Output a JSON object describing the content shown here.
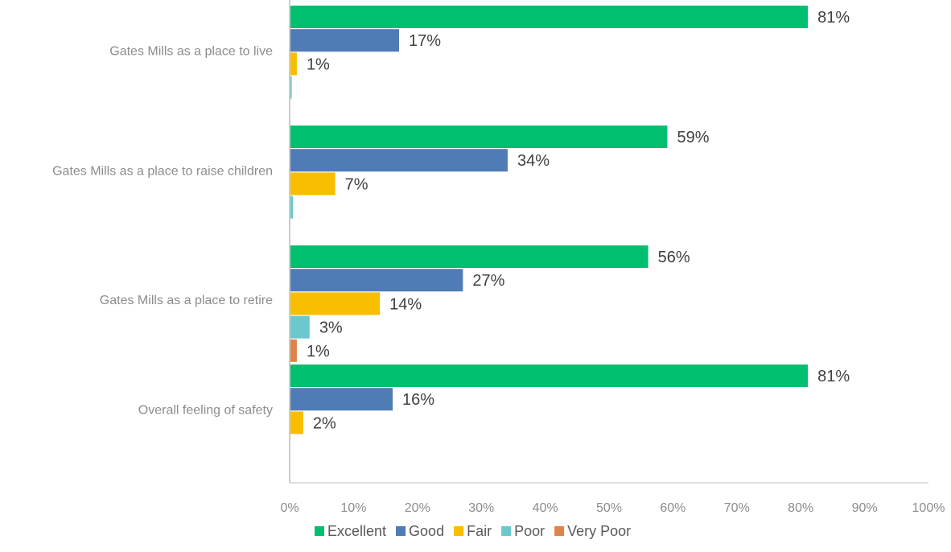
{
  "chart_data": {
    "type": "bar",
    "orientation": "horizontal",
    "categories": [
      "Gates Mills as a place to live",
      "Gates Mills as a place to raise children",
      "Gates Mills as a place to retire",
      "Overall feeling of safety"
    ],
    "series": [
      {
        "name": "Excellent",
        "color": "#00BF6F",
        "values": [
          81,
          59,
          56,
          81
        ],
        "labels": [
          "81%",
          "59%",
          "56%",
          "81%"
        ]
      },
      {
        "name": "Good",
        "color": "#507CB6",
        "values": [
          17,
          34,
          27,
          16
        ],
        "labels": [
          "17%",
          "34%",
          "27%",
          "16%"
        ]
      },
      {
        "name": "Fair",
        "color": "#F9BE00",
        "values": [
          1,
          7,
          14,
          2
        ],
        "labels": [
          "1%",
          "7%",
          "14%",
          "2%"
        ]
      },
      {
        "name": "Poor",
        "color": "#6BC8CD",
        "values": [
          0.2,
          0.4,
          3,
          0
        ],
        "labels": [
          "",
          "",
          "3%",
          ""
        ]
      },
      {
        "name": "Very Poor",
        "color": "#E0834A",
        "values": [
          0,
          0,
          1,
          0
        ],
        "labels": [
          "",
          "",
          "1%",
          ""
        ]
      }
    ],
    "xlim": [
      0,
      100
    ],
    "x_ticks": [
      "0%",
      "10%",
      "20%",
      "30%",
      "40%",
      "50%",
      "60%",
      "70%",
      "80%",
      "90%",
      "100%"
    ],
    "grid": false,
    "legend_position": "bottom"
  }
}
